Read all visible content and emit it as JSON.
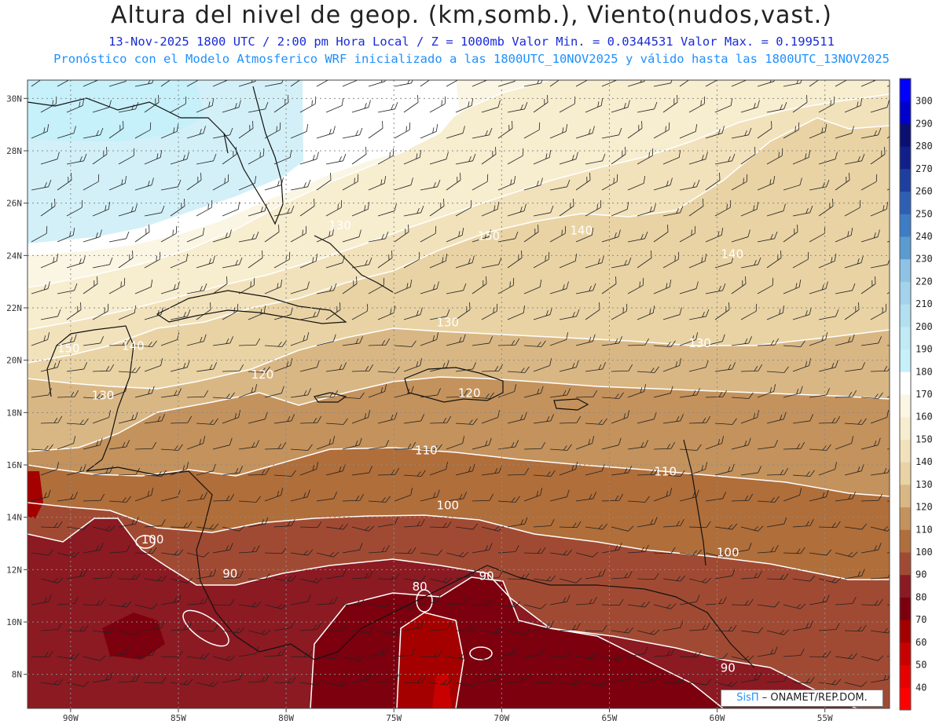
{
  "title": "Altura del nivel de geop. (km,somb.), Viento(nudos,vast.)",
  "subtitle": "13-Nov-2025 1800 UTC / 2:00 pm Hora Local / Z = 1000mb Valor Min. = 0.0344531 Valor Max. = 0.199511",
  "subtitle2": "Pronóstico con el Modelo Atmosferico WRF inicializado a las 1800UTC_10NOV2025 y válido hasta las 1800UTC_13NOV2025",
  "credit": {
    "logo": "SisΠ",
    "agency": " – ONAMET/REP.DOM."
  },
  "chart_data": {
    "type": "heatmap",
    "x_ticks": [
      "90W",
      "85W",
      "80W",
      "75W",
      "70W",
      "65W",
      "60W",
      "55W"
    ],
    "y_ticks": [
      "8N",
      "10N",
      "12N",
      "14N",
      "16N",
      "18N",
      "20N",
      "22N",
      "24N",
      "26N",
      "28N",
      "30N"
    ],
    "xlim": [
      -92,
      -52
    ],
    "ylim": [
      6.7,
      30.7
    ],
    "grid": true,
    "colorbar": {
      "levels": [
        40,
        50,
        60,
        70,
        80,
        90,
        100,
        110,
        120,
        130,
        140,
        150,
        160,
        170,
        180,
        190,
        200,
        210,
        220,
        230,
        240,
        250,
        260,
        270,
        280,
        290,
        300
      ],
      "colors": [
        "#ff0000",
        "#e60000",
        "#c80000",
        "#a50000",
        "#7c000e",
        "#8b1a22",
        "#a14a33",
        "#b06e3a",
        "#c4925c",
        "#d9b784",
        "#e9d3a4",
        "#f2e2bb",
        "#f7edcf",
        "#fbf5e4",
        "#ffffff",
        "#c6f0fa",
        "#bfeaf6",
        "#b3e0f0",
        "#a3d3ec",
        "#8fc3e6",
        "#5a9bd0",
        "#3d7dc5",
        "#2d5fb5",
        "#1f3fa0",
        "#10208a",
        "#0a1072",
        "#0000cc",
        "#0000ff"
      ]
    },
    "contour_labels": [
      {
        "lon": -90.1,
        "lat": 20.3,
        "text": "150"
      },
      {
        "lon": -87.1,
        "lat": 20.4,
        "text": "140"
      },
      {
        "lon": -88.5,
        "lat": 18.5,
        "text": "130"
      },
      {
        "lon": -81.1,
        "lat": 19.3,
        "text": "120"
      },
      {
        "lon": -77.5,
        "lat": 25.0,
        "text": "130"
      },
      {
        "lon": -72.5,
        "lat": 21.3,
        "text": "130"
      },
      {
        "lon": -70.6,
        "lat": 24.6,
        "text": "150"
      },
      {
        "lon": -66.3,
        "lat": 24.8,
        "text": "140"
      },
      {
        "lon": -59.3,
        "lat": 23.9,
        "text": "140"
      },
      {
        "lon": -60.8,
        "lat": 20.5,
        "text": "130"
      },
      {
        "lon": -71.5,
        "lat": 18.6,
        "text": "120"
      },
      {
        "lon": -73.5,
        "lat": 16.4,
        "text": "110"
      },
      {
        "lon": -62.4,
        "lat": 15.6,
        "text": "110"
      },
      {
        "lon": -72.5,
        "lat": 14.3,
        "text": "100"
      },
      {
        "lon": -86.2,
        "lat": 13.0,
        "text": "100"
      },
      {
        "lon": -59.5,
        "lat": 12.5,
        "text": "100"
      },
      {
        "lon": -82.6,
        "lat": 11.7,
        "text": "90"
      },
      {
        "lon": -70.7,
        "lat": 11.6,
        "text": "90"
      },
      {
        "lon": -73.8,
        "lat": 11.2,
        "text": "80"
      },
      {
        "lon": -59.5,
        "lat": 8.1,
        "text": "90"
      }
    ]
  }
}
